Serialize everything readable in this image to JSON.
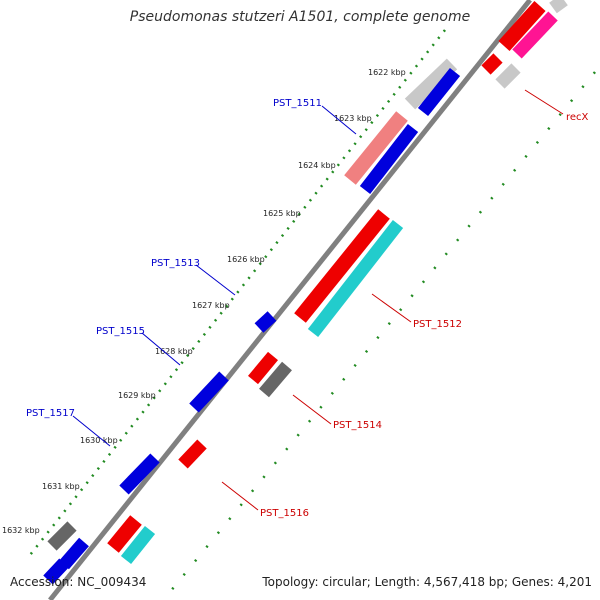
{
  "title": "Pseudomonas stutzeri A1501, complete genome",
  "accession_label": "Accession: NC_009434",
  "topology_label": "Topology: circular; Length: 4,567,418 bp; Genes: 4,201",
  "ticks": [
    "1622 kbp",
    "1623 kbp",
    "1624 kbp",
    "1625 kbp",
    "1626 kbp",
    "1627 kbp",
    "1628 kbp",
    "1629 kbp",
    "1630 kbp",
    "1631 kbp",
    "1632 kbp"
  ],
  "gene_labels": [
    {
      "text": "PST_1511",
      "color": "#0000cc"
    },
    {
      "text": "PST_1513",
      "color": "#0000cc"
    },
    {
      "text": "PST_1515",
      "color": "#0000cc"
    },
    {
      "text": "PST_1517",
      "color": "#0000cc"
    },
    {
      "text": "recX",
      "color": "#cc0000"
    },
    {
      "text": "PST_1512",
      "color": "#cc0000"
    },
    {
      "text": "PST_1514",
      "color": "#cc0000"
    },
    {
      "text": "PST_1516",
      "color": "#cc0000"
    }
  ],
  "colors": {
    "blue": "#0000dd",
    "red": "#ee0000",
    "pink": "#f08080",
    "cyan": "#22cccc",
    "gray": "#666666",
    "lightgray": "#c8c8c8",
    "magenta": "#ff1493",
    "dots": "#228b22"
  }
}
